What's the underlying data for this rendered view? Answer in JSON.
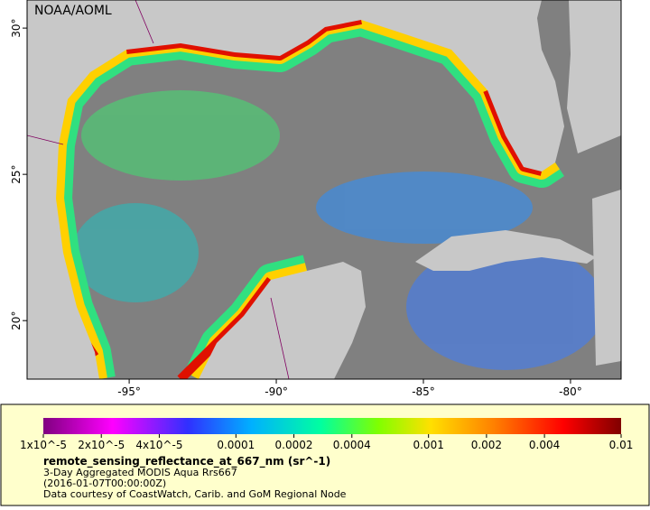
{
  "map": {
    "title": "NOAA/AOML",
    "lonlim": [
      -98.47,
      -78.28
    ],
    "latlim": [
      18.0,
      30.96
    ],
    "xticks": [
      {
        "value": -95,
        "label": "-95°"
      },
      {
        "value": -90,
        "label": "-90°"
      },
      {
        "value": -85,
        "label": "-85°"
      },
      {
        "value": -80,
        "label": "-80°"
      }
    ],
    "yticks": [
      {
        "value": 30,
        "label": "30°"
      },
      {
        "value": 25,
        "label": "25°"
      },
      {
        "value": 20,
        "label": "20°"
      }
    ]
  },
  "colorbar": {
    "log_scale": true,
    "lim": [
      1e-05,
      0.01
    ],
    "ticks": [
      {
        "value": 1e-05,
        "label": "1x10^-5"
      },
      {
        "value": 2e-05,
        "label": "2x10^-5"
      },
      {
        "value": 4e-05,
        "label": "4x10^-5"
      },
      0.0001,
      0.0002,
      0.0004,
      0.001,
      0.002,
      0.004,
      0.01
    ],
    "variable": "remote_sensing_reflectance_at_667_nm (sr^-1)",
    "description": "3-Day Aggregated MODIS Aqua Rrs667",
    "time": "(2016-01-07T00:00:00Z)",
    "credit": "Data courtesy of CoastWatch, Carib. and GoM Regional Node"
  }
}
